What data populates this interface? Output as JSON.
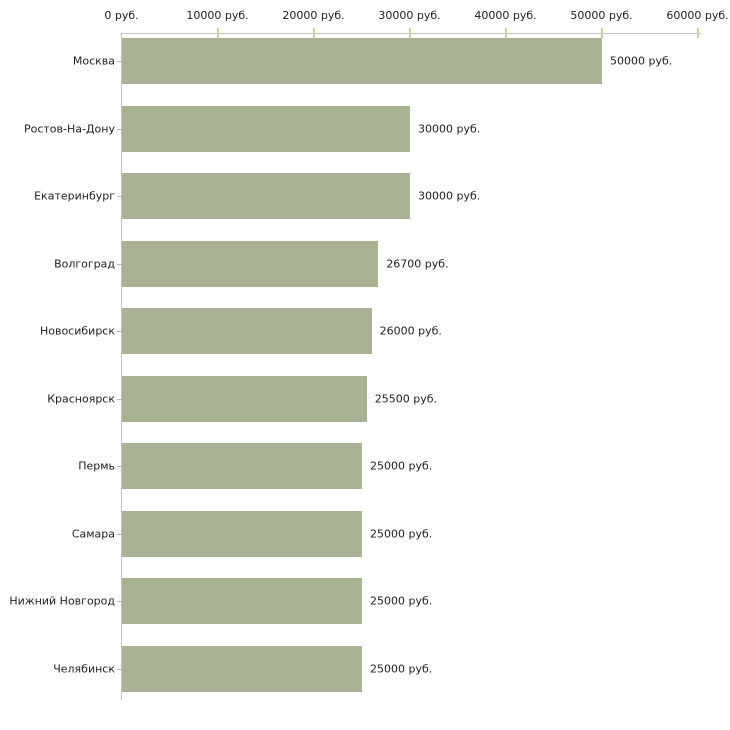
{
  "chart_data": {
    "type": "bar",
    "orientation": "horizontal",
    "title": "",
    "xlabel": "",
    "ylabel": "",
    "unit": "руб.",
    "xlim": [
      0,
      60000
    ],
    "grid": false,
    "legend": "none",
    "categories": [
      "Москва",
      "Ростов-На-Дону",
      "Екатеринбург",
      "Волгоград",
      "Новосибирск",
      "Красноярск",
      "Пермь",
      "Самара",
      "Нижний Новгород",
      "Челябинск"
    ],
    "values": [
      50000,
      30000,
      30000,
      26700,
      26000,
      25500,
      25000,
      25000,
      25000,
      25000
    ],
    "value_labels": [
      "50000 руб.",
      "30000 руб.",
      "30000 руб.",
      "26700 руб.",
      "26000 руб.",
      "25500 руб.",
      "25000 руб.",
      "25000 руб.",
      "25000 руб.",
      "25000 руб."
    ],
    "x_ticks": [
      {
        "value": 0,
        "label": "0 руб."
      },
      {
        "value": 10000,
        "label": "10000 руб."
      },
      {
        "value": 20000,
        "label": "20000 руб."
      },
      {
        "value": 30000,
        "label": "30000 руб."
      },
      {
        "value": 40000,
        "label": "40000 руб."
      },
      {
        "value": 50000,
        "label": "50000 руб."
      },
      {
        "value": 60000,
        "label": "60000 руб."
      }
    ],
    "colors": {
      "bar": "#aab295",
      "axis": "#c3c3c3",
      "x_tick": "#cdcfa2",
      "y_tick": "#b9b9ab",
      "text": "#222222",
      "background": "#ffffff"
    }
  }
}
